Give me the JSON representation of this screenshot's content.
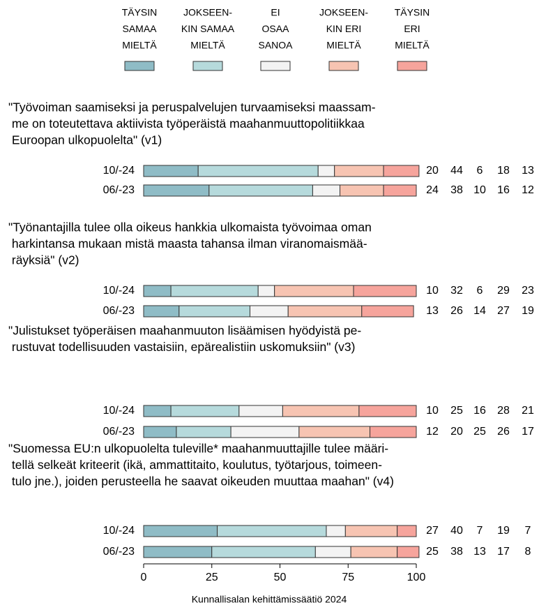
{
  "chart_data": {
    "type": "stacked_barh",
    "xlim": [
      0,
      100
    ],
    "xticks": [
      0,
      25,
      50,
      75,
      100
    ],
    "legend": [
      {
        "name": [
          "TÄYSIN",
          "SAMAA",
          "MIELTÄ"
        ],
        "color": "#8fbcc6"
      },
      {
        "name": [
          "JOKSEEN-",
          "KIN SAMAA",
          "MIELTÄ"
        ],
        "color": "#b6dadc"
      },
      {
        "name": [
          "EI",
          "OSAA",
          "SANOA"
        ],
        "color": "#f3f3f3"
      },
      {
        "name": [
          "JOKSEEN-",
          "KIN ERI",
          "MIELTÄ"
        ],
        "color": "#f7c4b2"
      },
      {
        "name": [
          "TÄYSIN",
          "ERI",
          "MIELTÄ"
        ],
        "color": "#f6a49c"
      }
    ],
    "panels": [
      {
        "title": [
          "\"Työvoiman saamiseksi ja peruspalvelujen turvaamiseksi maassam-",
          " me on toteutettava aktiivista työperäistä maahanmuuttopolitiikkaa",
          " Euroopan ulkopuolelta\" (v1)"
        ],
        "categories": [
          "10/-24",
          "06/-23"
        ],
        "values": [
          [
            20,
            44,
            6,
            18,
            13
          ],
          [
            24,
            38,
            10,
            16,
            12
          ]
        ]
      },
      {
        "title": [
          "\"Työnantajilla tulee olla oikeus hankkia ulkomaista työvoimaa oman",
          " harkintansa mukaan mistä maasta tahansa ilman viranomaismää-",
          " räyksiä\" (v2)"
        ],
        "categories": [
          "10/-24",
          "06/-23"
        ],
        "values": [
          [
            10,
            32,
            6,
            29,
            23
          ],
          [
            13,
            26,
            14,
            27,
            19
          ]
        ]
      },
      {
        "title": [
          "\"Julistukset työperäisen maahanmuuton lisäämisen hyödyistä pe-",
          " rustuvat todellisuuden vastaisiin, epärealistiin uskomuksiin\" (v3)"
        ],
        "categories": [
          "10/-24",
          "06/-23"
        ],
        "values": [
          [
            10,
            25,
            16,
            28,
            21
          ],
          [
            12,
            20,
            25,
            26,
            17
          ]
        ]
      },
      {
        "title": [
          "\"Suomessa EU:n ulkopuolelta tuleville* maahanmuuttajille tulee määri-",
          " tellä selkeät kriteerit (ikä, ammattitaito, koulutus, työtarjous, toimeen-",
          " tulo jne.), joiden perusteella he saavat oikeuden muuttaa maahan\" (v4)"
        ],
        "categories": [
          "10/-24",
          "06/-23"
        ],
        "values": [
          [
            27,
            40,
            7,
            19,
            7
          ],
          [
            25,
            38,
            13,
            17,
            8
          ]
        ]
      }
    ],
    "source": "Kunnallisalan kehittämissäätiö 2024"
  }
}
